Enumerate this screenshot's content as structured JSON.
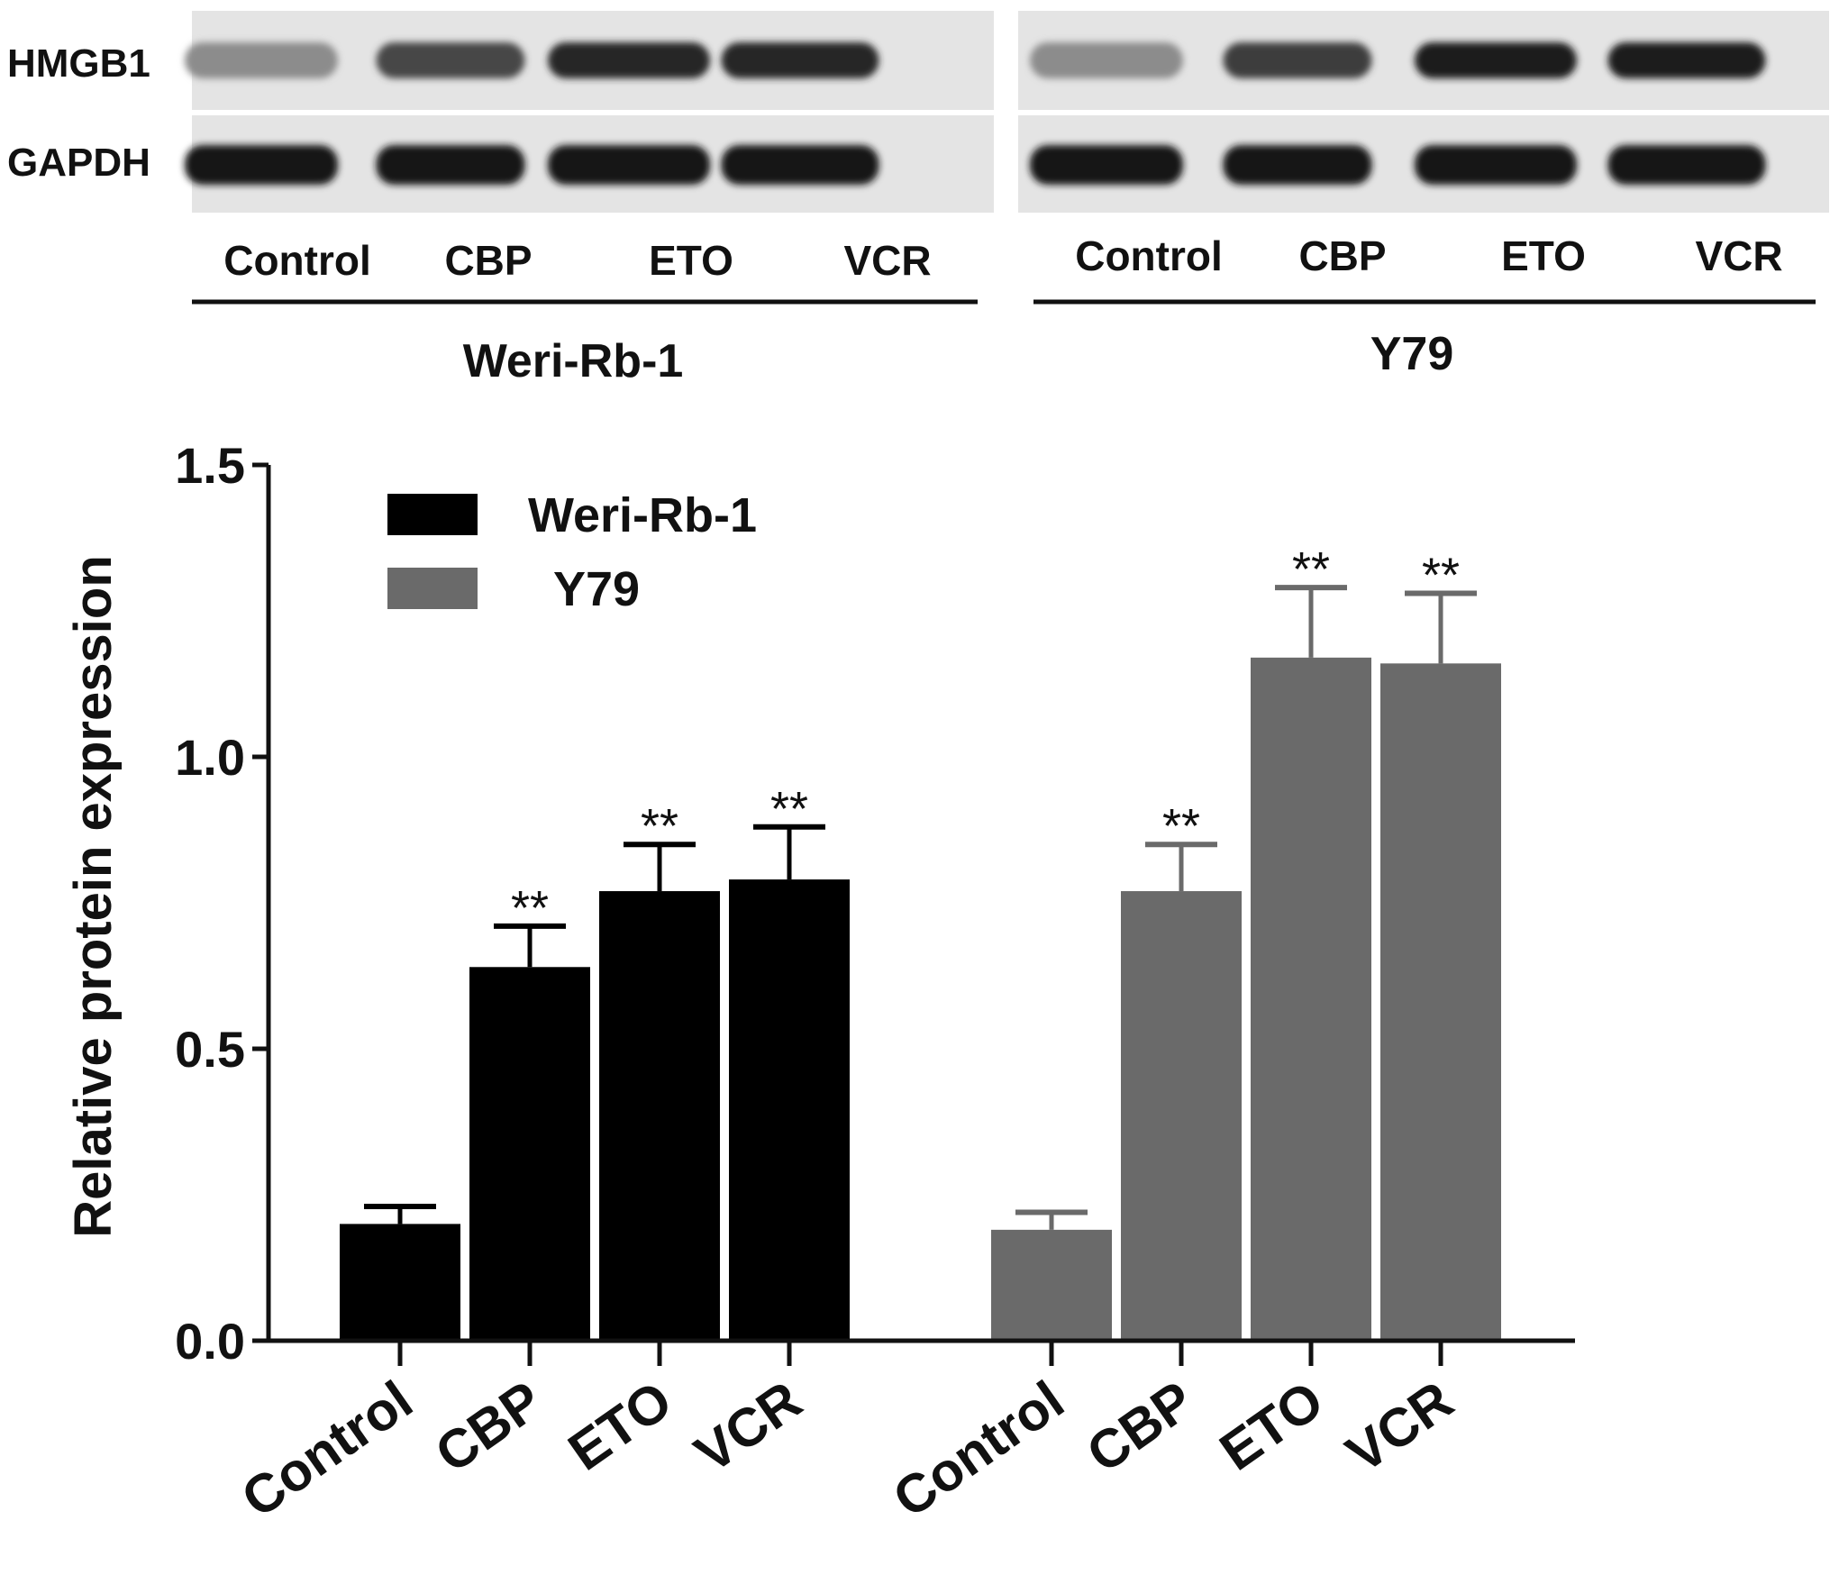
{
  "blot": {
    "rows": [
      {
        "label": "HMGB1",
        "intensity": [
          [
            0.35,
            0.7,
            0.85,
            0.85
          ],
          [
            0.35,
            0.75,
            0.9,
            0.9
          ]
        ]
      },
      {
        "label": "GAPDH",
        "intensity": [
          [
            0.95,
            0.95,
            0.95,
            0.95
          ],
          [
            0.95,
            0.95,
            0.95,
            0.95
          ]
        ]
      }
    ],
    "panels": [
      {
        "cell_line": "Weri-Rb-1",
        "lanes": [
          "Control",
          "CBP",
          "ETO",
          "VCR"
        ]
      },
      {
        "cell_line": "Y79",
        "lanes": [
          "Control",
          "CBP",
          "ETO",
          "VCR"
        ]
      }
    ]
  },
  "chart_data": {
    "type": "bar",
    "ylabel": "Relative protein expression",
    "ylim": [
      0,
      1.5
    ],
    "yticks": [
      "0.0",
      "0.5",
      "1.0",
      "1.5"
    ],
    "groups": [
      {
        "name": "Weri-Rb-1",
        "color": "#000000",
        "categories": [
          "Control",
          "CBP",
          "ETO",
          "VCR"
        ],
        "values": [
          0.2,
          0.64,
          0.77,
          0.79
        ],
        "errors": [
          0.03,
          0.07,
          0.08,
          0.09
        ],
        "annotations": [
          "",
          "**",
          "**",
          "**"
        ]
      },
      {
        "name": "Y79",
        "color": "#6a6a6a",
        "categories": [
          "Control",
          "CBP",
          "ETO",
          "VCR"
        ],
        "values": [
          0.19,
          0.77,
          1.17,
          1.16
        ],
        "errors": [
          0.03,
          0.08,
          0.12,
          0.12
        ],
        "annotations": [
          "",
          "**",
          "**",
          "**"
        ]
      }
    ],
    "legend": {
      "position": "top-left",
      "entries": [
        "Weri-Rb-1",
        "Y79"
      ]
    }
  }
}
